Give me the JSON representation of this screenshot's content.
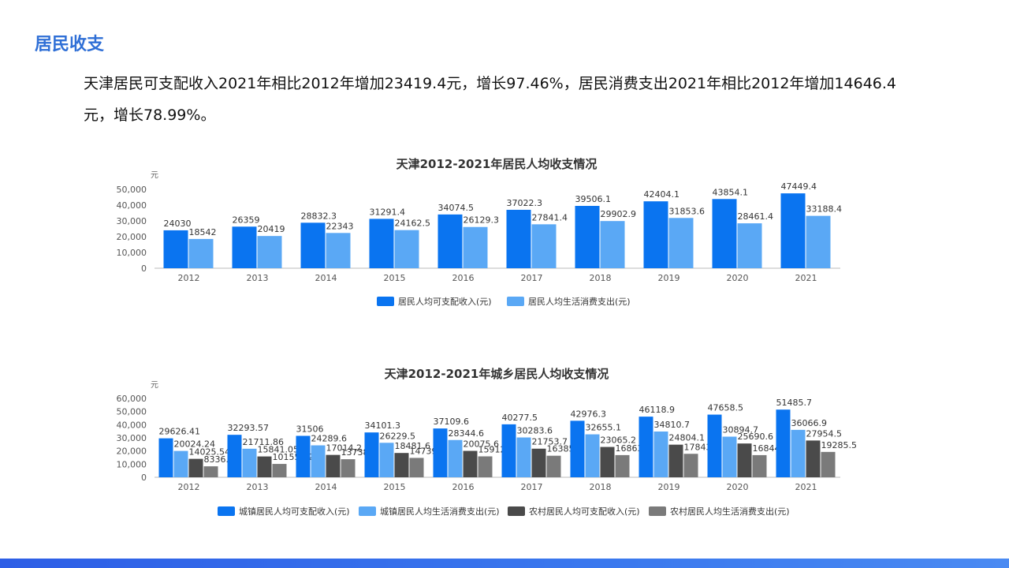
{
  "page": {
    "title": "居民收支",
    "paragraph": "天津居民可支配收入2021年相比2012年增加23419.4元，增长97.46%，居民消费支出2021年相比2012年增加14646.4元，增长78.99%。"
  },
  "colors": {
    "accent": "#2f6fd6",
    "series_blue": "#0a74f0",
    "series_lightblue": "#5aa8f5",
    "series_darkgray": "#4a4a4a",
    "series_gray": "#7a7a7a"
  },
  "chart_data": [
    {
      "type": "bar",
      "title": "天津2012-2021年居民人均收支情况",
      "ylabel": "元",
      "ylim": [
        0,
        50000
      ],
      "yticks": [
        "0",
        "10,000",
        "20,000",
        "30,000",
        "40,000",
        "50,000"
      ],
      "grid": false,
      "legend_position": "bottom",
      "categories": [
        "2012",
        "2013",
        "2014",
        "2015",
        "2016",
        "2017",
        "2018",
        "2019",
        "2020",
        "2021"
      ],
      "series": [
        {
          "name": "居民人均可支配收入(元)",
          "color": "#0a74f0",
          "values": [
            24030,
            26359,
            28832.3,
            31291.4,
            34074.5,
            37022.3,
            39506.1,
            42404.1,
            43854.1,
            47449.4
          ],
          "labels": [
            "24030",
            "26359",
            "28832.3",
            "31291.4",
            "34074.5",
            "37022.3",
            "39506.1",
            "42404.1",
            "43854.1",
            "47449.4"
          ]
        },
        {
          "name": "居民人均生活消费支出(元)",
          "color": "#5aa8f5",
          "values": [
            18542,
            20419,
            22343,
            24162.5,
            26129.3,
            27841.4,
            29902.9,
            31853.6,
            28461.4,
            33188.4
          ],
          "labels": [
            "18542",
            "20419",
            "22343",
            "24162.5",
            "26129.3",
            "27841.4",
            "29902.9",
            "31853.6",
            "28461.4",
            "33188.4"
          ]
        }
      ]
    },
    {
      "type": "bar",
      "title": "天津2012-2021年城乡居民人均收支情况",
      "ylabel": "元",
      "ylim": [
        0,
        60000
      ],
      "yticks": [
        "0",
        "10,000",
        "20,000",
        "30,000",
        "40,000",
        "50,000",
        "60,000"
      ],
      "grid": false,
      "legend_position": "bottom",
      "categories": [
        "2012",
        "2013",
        "2014",
        "2015",
        "2016",
        "2017",
        "2018",
        "2019",
        "2020",
        "2021"
      ],
      "series": [
        {
          "name": "城镇居民人均可支配收入(元)",
          "color": "#0a74f0",
          "values": [
            29626.41,
            32293.57,
            31506,
            34101.3,
            37109.6,
            40277.5,
            42976.3,
            46118.9,
            47658.5,
            51485.7
          ],
          "labels": [
            "29626.41",
            "32293.57",
            "31506",
            "34101.3",
            "37109.6",
            "40277.5",
            "42976.3",
            "46118.9",
            "47658.5",
            "51485.7"
          ]
        },
        {
          "name": "城镇居民人均生活消费支出(元)",
          "color": "#5aa8f5",
          "values": [
            20024.24,
            21711.86,
            24289.6,
            26229.5,
            28344.6,
            30283.6,
            32655.1,
            34810.7,
            30894.7,
            36066.9
          ],
          "labels": [
            "20024.24",
            "21711.86",
            "24289.6",
            "26229.5",
            "28344.6",
            "30283.6",
            "32655.1",
            "34810.7",
            "30894.7",
            "36066.9"
          ]
        },
        {
          "name": "农村居民人均可支配收入(元)",
          "color": "#4a4a4a",
          "values": [
            14025.54,
            15841.05,
            17014.2,
            18481.6,
            20075.6,
            21753.7,
            23065.2,
            24804.1,
            25690.6,
            27954.5
          ],
          "labels": [
            "14025.54",
            "15841.05",
            "17014.2",
            "18481.6",
            "20075.6",
            "21753.7",
            "23065.2",
            "24804.1",
            "25690.6",
            "27954.5"
          ]
        },
        {
          "name": "农村居民人均生活消费支出(元)",
          "color": "#7a7a7a",
          "values": [
            8336.55,
            10155.02,
            13738.6,
            14739.4,
            15912.1,
            16385.9,
            16863.3,
            17843.3,
            16844.1,
            19285.5
          ],
          "labels": [
            "8336.55",
            "10155.02",
            "13738.6",
            "14739.4",
            "15912.1",
            "16385.9",
            "16863.3",
            "17843.3",
            "16844.1",
            "19285.5"
          ]
        }
      ]
    }
  ]
}
